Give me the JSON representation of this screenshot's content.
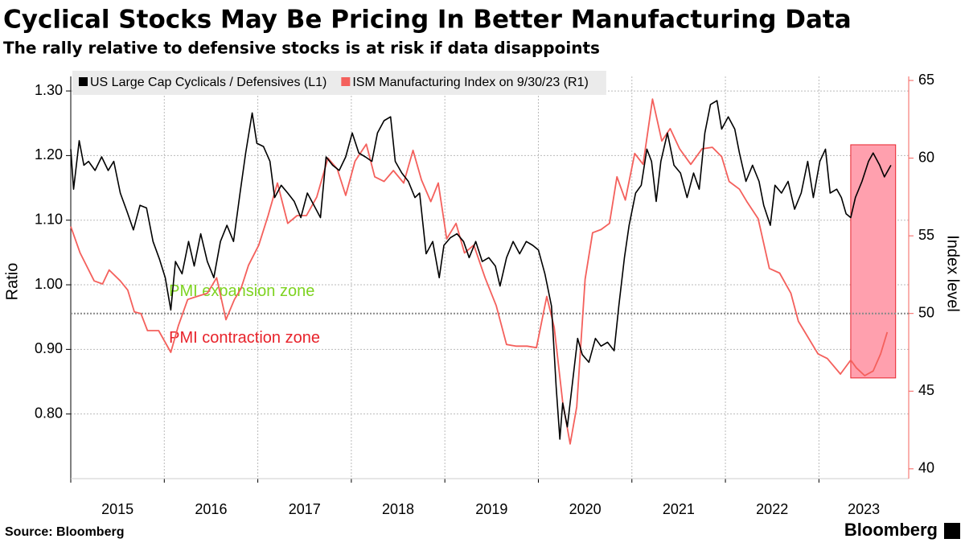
{
  "chart_data": {
    "type": "line",
    "title": "Cyclical Stocks May Be Pricing In Better Manufacturing Data",
    "subtitle": "The rally relative to defensive stocks is at risk if data disappoints",
    "y_label": "Ratio",
    "y2_label": "Index level",
    "source": "Source: Bloomberg",
    "brand": "Bloomberg",
    "xlim": [
      2015,
      2023.96
    ],
    "xticks": [
      2015,
      2016,
      2017,
      2018,
      2019,
      2020,
      2021,
      2022,
      2023
    ],
    "ylim": [
      0.7,
      1.3225
    ],
    "yticks": [
      {
        "value": 0.8,
        "label": "0.80"
      },
      {
        "value": 0.9,
        "label": "0.90"
      },
      {
        "value": 1.0,
        "label": "1.00"
      },
      {
        "value": 1.1,
        "label": "1.10"
      },
      {
        "value": 1.2,
        "label": "1.20"
      },
      {
        "value": 1.3,
        "label": "1.30"
      }
    ],
    "y2lim": [
      39.37,
      65.26
    ],
    "y2ticks": [
      40,
      45,
      50,
      55,
      60,
      65
    ],
    "grid": true,
    "reference_line": {
      "axis": "y2",
      "value": 50
    },
    "annotations": [
      {
        "text": "PMI expansion zone",
        "color": "#7ed321",
        "x": 2016.05,
        "y2": 51.4
      },
      {
        "text": "PMI contraction zone",
        "color": "#e8232b",
        "x": 2016.05,
        "y2": 48.4
      }
    ],
    "highlight": {
      "x": [
        2023.34,
        2023.82
      ],
      "y2": [
        45.85,
        60.86
      ],
      "color": "#ffa0ae"
    },
    "series": [
      {
        "name": "US Large Cap Cyclicals / Defensives (L1)",
        "color": "#000000",
        "axis": "y",
        "x": [
          2015.0,
          2015.03,
          2015.09,
          2015.14,
          2015.19,
          2015.26,
          2015.33,
          2015.4,
          2015.46,
          2015.53,
          2015.6,
          2015.67,
          2015.74,
          2015.81,
          2015.88,
          2015.95,
          2016.01,
          2016.07,
          2016.12,
          2016.19,
          2016.26,
          2016.32,
          2016.39,
          2016.46,
          2016.53,
          2016.6,
          2016.67,
          2016.74,
          2016.81,
          2016.87,
          2016.94,
          2016.99,
          2017.06,
          2017.13,
          2017.18,
          2017.25,
          2017.32,
          2017.39,
          2017.46,
          2017.53,
          2017.6,
          2017.67,
          2017.73,
          2017.8,
          2017.87,
          2017.94,
          2018.01,
          2018.08,
          2018.15,
          2018.22,
          2018.28,
          2018.35,
          2018.42,
          2018.47,
          2018.54,
          2018.61,
          2018.68,
          2018.73,
          2018.8,
          2018.87,
          2018.94,
          2018.99,
          2019.06,
          2019.13,
          2019.2,
          2019.26,
          2019.33,
          2019.4,
          2019.47,
          2019.54,
          2019.59,
          2019.66,
          2019.73,
          2019.8,
          2019.87,
          2019.94,
          2020.0,
          2020.07,
          2020.14,
          2020.19,
          2020.23,
          2020.26,
          2020.31,
          2020.37,
          2020.42,
          2020.47,
          2020.54,
          2020.61,
          2020.67,
          2020.74,
          2020.81,
          2020.86,
          2020.92,
          2020.97,
          2021.04,
          2021.1,
          2021.16,
          2021.21,
          2021.26,
          2021.31,
          2021.38,
          2021.45,
          2021.52,
          2021.59,
          2021.66,
          2021.72,
          2021.78,
          2021.84,
          2021.91,
          2021.96,
          2022.03,
          2022.1,
          2022.15,
          2022.22,
          2022.29,
          2022.36,
          2022.41,
          2022.48,
          2022.53,
          2022.6,
          2022.67,
          2022.74,
          2022.81,
          2022.88,
          2022.94,
          2023.01,
          2023.07,
          2023.12,
          2023.19,
          2023.24,
          2023.29,
          2023.34,
          2023.39,
          2023.46,
          2023.53,
          2023.58,
          2023.65,
          2023.7,
          2023.77
        ],
        "values": [
          1.21,
          1.148,
          1.223,
          1.185,
          1.191,
          1.177,
          1.198,
          1.177,
          1.191,
          1.142,
          1.114,
          1.085,
          1.123,
          1.119,
          1.067,
          1.039,
          1.011,
          0.961,
          1.036,
          1.017,
          1.067,
          1.029,
          1.079,
          1.036,
          1.011,
          1.067,
          1.092,
          1.067,
          1.142,
          1.204,
          1.266,
          1.219,
          1.214,
          1.191,
          1.135,
          1.154,
          1.142,
          1.129,
          1.104,
          1.142,
          1.123,
          1.104,
          1.198,
          1.185,
          1.177,
          1.198,
          1.235,
          1.204,
          1.198,
          1.191,
          1.235,
          1.254,
          1.26,
          1.191,
          1.173,
          1.16,
          1.135,
          1.142,
          1.048,
          1.067,
          1.011,
          1.061,
          1.073,
          1.079,
          1.067,
          1.042,
          1.067,
          1.036,
          1.042,
          1.029,
          0.998,
          1.042,
          1.067,
          1.048,
          1.067,
          1.061,
          1.054,
          1.017,
          0.967,
          0.842,
          0.761,
          0.817,
          0.78,
          0.855,
          0.917,
          0.892,
          0.88,
          0.917,
          0.905,
          0.911,
          0.898,
          0.967,
          1.042,
          1.092,
          1.142,
          1.154,
          1.21,
          1.191,
          1.129,
          1.191,
          1.235,
          1.185,
          1.173,
          1.135,
          1.173,
          1.148,
          1.235,
          1.279,
          1.285,
          1.241,
          1.26,
          1.241,
          1.204,
          1.16,
          1.185,
          1.16,
          1.123,
          1.092,
          1.154,
          1.142,
          1.16,
          1.117,
          1.142,
          1.191,
          1.135,
          1.191,
          1.21,
          1.142,
          1.148,
          1.135,
          1.11,
          1.104,
          1.135,
          1.16,
          1.191,
          1.204,
          1.185,
          1.167,
          1.185
        ]
      },
      {
        "name": "ISM Manufacturing Index on 9/30/23 (R1)",
        "color": "#f4605c",
        "axis": "y2",
        "x": [
          2015.0,
          2015.1,
          2015.25,
          2015.34,
          2015.41,
          2015.53,
          2015.61,
          2015.68,
          2015.75,
          2015.82,
          2015.94,
          2016.07,
          2016.15,
          2016.25,
          2016.35,
          2016.46,
          2016.56,
          2016.66,
          2016.75,
          2016.82,
          2016.9,
          2017.01,
          2017.11,
          2017.21,
          2017.32,
          2017.42,
          2017.52,
          2017.63,
          2017.75,
          2017.85,
          2017.94,
          2018.04,
          2018.16,
          2018.25,
          2018.35,
          2018.45,
          2018.56,
          2018.66,
          2018.75,
          2018.85,
          2018.93,
          2019.02,
          2019.12,
          2019.21,
          2019.31,
          2019.43,
          2019.55,
          2019.66,
          2019.76,
          2019.88,
          2019.98,
          2020.09,
          2020.17,
          2020.26,
          2020.34,
          2020.41,
          2020.5,
          2020.58,
          2020.67,
          2020.76,
          2020.84,
          2020.93,
          2021.03,
          2021.12,
          2021.22,
          2021.32,
          2021.41,
          2021.51,
          2021.63,
          2021.75,
          2021.86,
          2021.96,
          2022.04,
          2022.15,
          2022.23,
          2022.35,
          2022.47,
          2022.58,
          2022.7,
          2022.78,
          2022.89,
          2022.99,
          2023.09,
          2023.23,
          2023.34,
          2023.4,
          2023.49,
          2023.58,
          2023.66,
          2023.73
        ],
        "values": [
          55.6,
          53.9,
          52.1,
          51.9,
          52.8,
          52.1,
          51.5,
          50.1,
          50.0,
          48.9,
          48.9,
          47.5,
          49.2,
          50.9,
          51.1,
          51.3,
          52.3,
          49.6,
          50.9,
          51.6,
          53.1,
          54.4,
          56.3,
          58.4,
          55.8,
          56.3,
          56.3,
          57.5,
          60.0,
          59.3,
          57.6,
          59.8,
          60.9,
          58.8,
          58.5,
          59.2,
          58.4,
          60.5,
          58.6,
          57.2,
          58.4,
          54.8,
          55.8,
          53.9,
          54.4,
          52.3,
          50.5,
          48.0,
          47.9,
          47.9,
          47.8,
          51.1,
          49.1,
          44.3,
          41.6,
          44.0,
          52.2,
          55.2,
          55.4,
          55.8,
          58.8,
          57.3,
          60.3,
          59.6,
          63.8,
          61.1,
          61.9,
          60.6,
          59.6,
          60.6,
          60.7,
          60.1,
          58.5,
          58.0,
          57.2,
          56.1,
          52.9,
          52.6,
          51.3,
          49.5,
          48.4,
          47.4,
          47.1,
          46.1,
          47.0,
          46.5,
          46.0,
          46.3,
          47.4,
          48.8
        ]
      }
    ]
  }
}
